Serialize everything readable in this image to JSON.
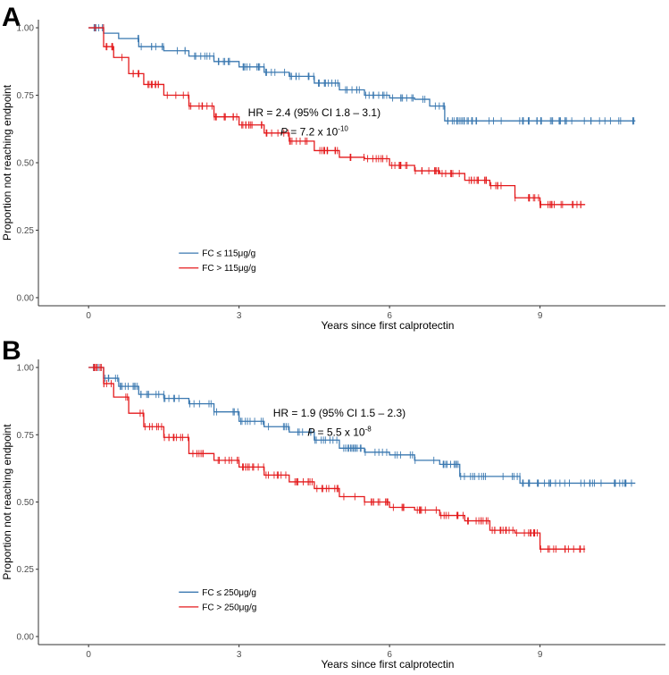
{
  "colors": {
    "blue": "#3a78b0",
    "red": "#e41a1c",
    "axis": "#333333",
    "tick_text": "#4d4d4d"
  },
  "chart_data": [
    {
      "type": "line",
      "panel_label": "A",
      "xlabel": "Years since first calprotectin",
      "ylabel": "Proportion not reaching endpoint",
      "xlim": [
        -1,
        11.5
      ],
      "ylim": [
        -0.03,
        1.03
      ],
      "x_ticks": [
        0,
        3,
        6,
        9
      ],
      "x_tick_labels": [
        "0",
        "3",
        "6",
        "9"
      ],
      "y_ticks": [
        0,
        0.25,
        0.5,
        0.75,
        1
      ],
      "y_tick_labels": [
        "0.00",
        "0.25",
        "0.50",
        "0.75",
        "1.00"
      ],
      "annotation": {
        "hr_text": "HR = 2.4 (95% CI 1.8 – 3.1)",
        "p_label": "P",
        "p_text": " = 7.2 x 10",
        "p_exp": "-10",
        "x": 4.5,
        "y_hr": 0.685,
        "y_p": 0.615
      },
      "legend_x": 1.8,
      "series": [
        {
          "name": "FC ≤ 115μg/g",
          "color_key": "blue",
          "legend_y": 0.165,
          "x": [
            0,
            0.3,
            0.6,
            1.0,
            1.5,
            2.0,
            2.5,
            3.0,
            3.5,
            4.0,
            4.5,
            5.0,
            5.5,
            6.0,
            6.5,
            6.8,
            7.1,
            8.0,
            9.0,
            10.9
          ],
          "y": [
            1.0,
            0.98,
            0.96,
            0.93,
            0.915,
            0.895,
            0.875,
            0.855,
            0.835,
            0.82,
            0.795,
            0.77,
            0.75,
            0.74,
            0.735,
            0.71,
            0.655,
            0.655,
            0.655,
            0.655
          ]
        },
        {
          "name": "FC > 115μg/g",
          "color_key": "red",
          "legend_y": 0.11,
          "x": [
            0,
            0.3,
            0.5,
            0.8,
            1.1,
            1.5,
            2.0,
            2.5,
            3.0,
            3.5,
            4.0,
            4.5,
            5.0,
            5.5,
            6.0,
            6.5,
            7.0,
            7.5,
            8.0,
            8.5,
            9.0,
            9.9
          ],
          "y": [
            1.0,
            0.93,
            0.89,
            0.83,
            0.79,
            0.75,
            0.71,
            0.67,
            0.64,
            0.61,
            0.58,
            0.545,
            0.52,
            0.515,
            0.49,
            0.47,
            0.46,
            0.435,
            0.415,
            0.37,
            0.345,
            0.345
          ]
        }
      ]
    },
    {
      "type": "line",
      "panel_label": "B",
      "xlabel": "Years since first calprotectin",
      "ylabel": "Proportion not reaching endpoint",
      "xlim": [
        -1,
        11.5
      ],
      "ylim": [
        -0.03,
        1.03
      ],
      "x_ticks": [
        0,
        3,
        6,
        9
      ],
      "x_tick_labels": [
        "0",
        "3",
        "6",
        "9"
      ],
      "y_ticks": [
        0,
        0.25,
        0.5,
        0.75,
        1
      ],
      "y_tick_labels": [
        "0.00",
        "0.25",
        "0.50",
        "0.75",
        "1.00"
      ],
      "annotation": {
        "hr_text": "HR = 1.9 (95% CI 1.5 – 2.3)",
        "p_label": "P",
        "p_text": " = 5.5 x 10",
        "p_exp": "-8",
        "x": 5.0,
        "y_hr": 0.83,
        "y_p": 0.76
      },
      "legend_x": 1.8,
      "series": [
        {
          "name": "FC ≤ 250μg/g",
          "color_key": "blue",
          "legend_y": 0.165,
          "x": [
            0,
            0.3,
            0.6,
            1.0,
            1.5,
            2.0,
            2.5,
            3.0,
            3.5,
            4.0,
            4.5,
            5.0,
            5.5,
            6.0,
            6.5,
            7.0,
            7.4,
            8.0,
            8.6,
            9.0,
            10.9
          ],
          "y": [
            1.0,
            0.96,
            0.93,
            0.9,
            0.885,
            0.865,
            0.835,
            0.8,
            0.78,
            0.76,
            0.73,
            0.7,
            0.685,
            0.675,
            0.655,
            0.64,
            0.595,
            0.595,
            0.57,
            0.57,
            0.57
          ]
        },
        {
          "name": "FC > 250μg/g",
          "color_key": "red",
          "legend_y": 0.11,
          "x": [
            0,
            0.3,
            0.5,
            0.8,
            1.1,
            1.5,
            2.0,
            2.5,
            3.0,
            3.5,
            4.0,
            4.5,
            5.0,
            5.5,
            6.0,
            6.5,
            7.0,
            7.5,
            8.0,
            8.5,
            9.0,
            9.9
          ],
          "y": [
            1.0,
            0.94,
            0.89,
            0.83,
            0.78,
            0.74,
            0.68,
            0.655,
            0.63,
            0.6,
            0.575,
            0.55,
            0.52,
            0.5,
            0.48,
            0.47,
            0.45,
            0.43,
            0.395,
            0.385,
            0.325,
            0.325
          ]
        }
      ]
    }
  ]
}
